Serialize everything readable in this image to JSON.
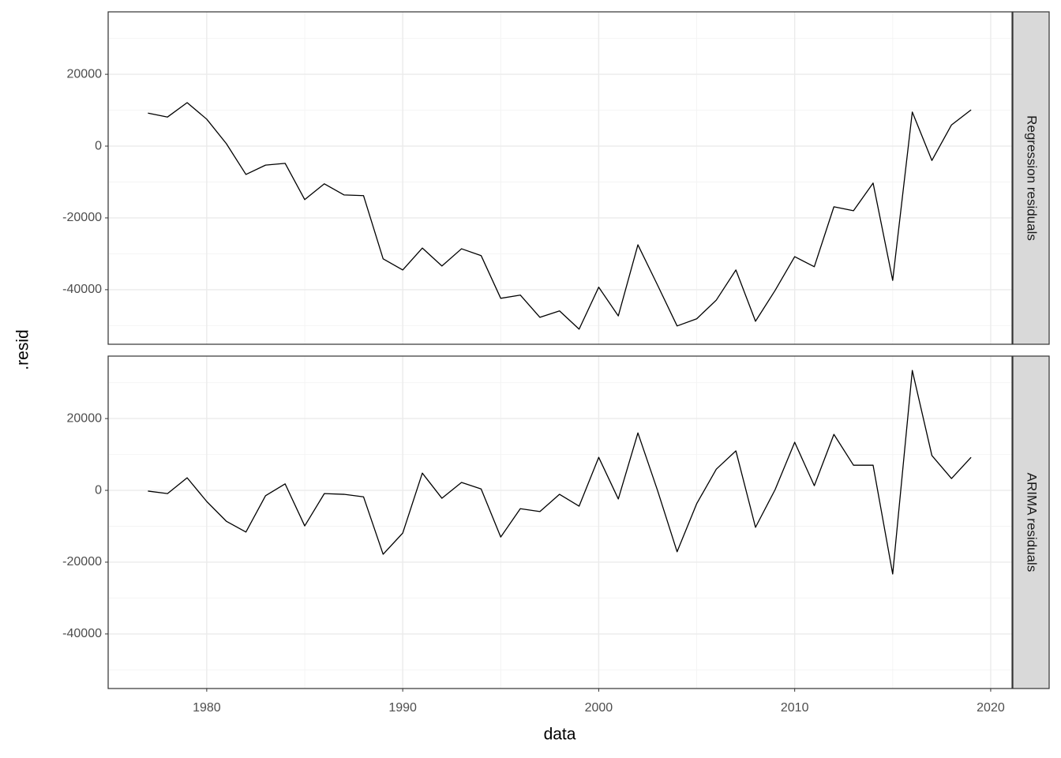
{
  "chart_data": {
    "type": "line",
    "xlabel": "data",
    "ylabel": ".resid",
    "x": [
      1977,
      1978,
      1979,
      1980,
      1981,
      1982,
      1983,
      1984,
      1985,
      1986,
      1987,
      1988,
      1989,
      1990,
      1991,
      1992,
      1993,
      1994,
      1995,
      1996,
      1997,
      1998,
      1999,
      2000,
      2001,
      2002,
      2003,
      2004,
      2005,
      2006,
      2007,
      2008,
      2009,
      2010,
      2011,
      2012,
      2013,
      2014,
      2015,
      2016,
      2017,
      2018,
      2019
    ],
    "series": [
      {
        "name": "Regression residuals",
        "color": "#000000",
        "values": [
          9200,
          8100,
          12100,
          7500,
          700,
          -7900,
          -5300,
          -4800,
          -14900,
          -10500,
          -13600,
          -13800,
          -31400,
          -34500,
          -28400,
          -33400,
          -28600,
          -30500,
          -42400,
          -41500,
          -47700,
          -45900,
          -51000,
          -39300,
          -47300,
          -27500,
          -38700,
          -50100,
          -48100,
          -42900,
          -34500,
          -48800,
          -40200,
          -30800,
          -33600,
          -16900,
          -18000,
          -10300,
          -37400,
          9500,
          -4000,
          5900,
          10100
        ]
      },
      {
        "name": "ARIMA residuals",
        "color": "#000000",
        "values": [
          -200,
          -900,
          3500,
          -3100,
          -8600,
          -11600,
          -1500,
          1800,
          -9900,
          -900,
          -1100,
          -1800,
          -17800,
          -11900,
          4800,
          -2200,
          2200,
          400,
          -13000,
          -5100,
          -5900,
          -1100,
          -4400,
          9200,
          -2400,
          16000,
          0,
          -17100,
          -3700,
          5900,
          11000,
          -10300,
          200,
          13400,
          1300,
          15600,
          7000,
          7000,
          -23300,
          33400,
          9700,
          3300,
          9200
        ]
      }
    ],
    "xlim": [
      1974.97,
      2021.09
    ],
    "xticks": [
      1980,
      1990,
      2000,
      2010,
      2020
    ],
    "ylim": [
      -55200,
      37400
    ],
    "yticks": [
      -40000,
      -20000,
      0,
      20000
    ],
    "x_minor": [
      1975,
      1985,
      1995,
      2005,
      2015
    ],
    "y_minor": [
      -50000,
      -30000,
      -10000,
      10000,
      30000
    ],
    "grid": true
  }
}
